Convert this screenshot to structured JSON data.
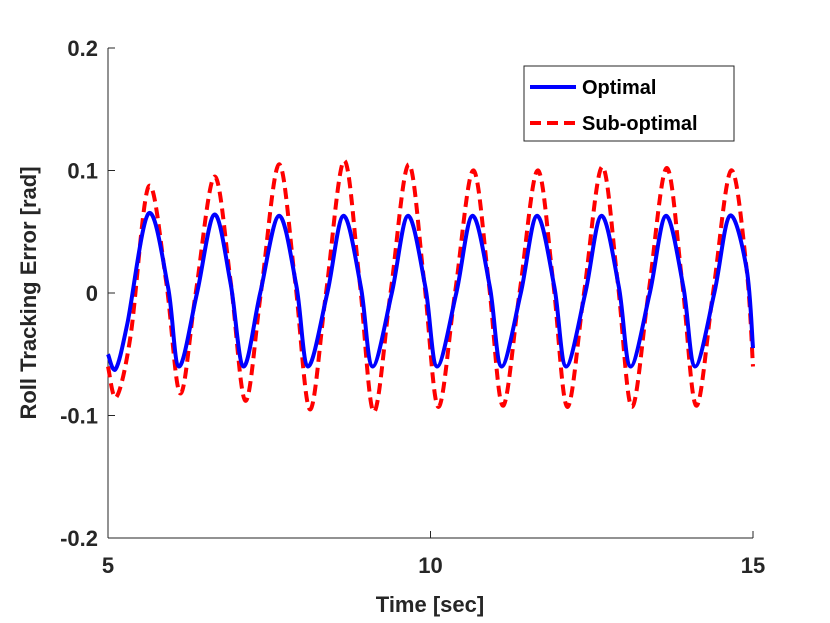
{
  "chart_data": {
    "type": "line",
    "title": "",
    "xlabel": "Time [sec]",
    "ylabel": "Roll Tracking Error [rad]",
    "xlim": [
      5,
      15
    ],
    "ylim": [
      -0.2,
      0.2
    ],
    "x_ticks": [
      5,
      10,
      15
    ],
    "x_tick_labels": [
      "5",
      "10",
      "15"
    ],
    "y_ticks": [
      -0.2,
      -0.1,
      0,
      0.1,
      0.2
    ],
    "y_tick_labels": [
      "-0.2",
      "-0.1",
      "0",
      "0.1",
      "0.2"
    ],
    "grid": false,
    "legend_position": "top-right",
    "series": [
      {
        "name": "Optimal",
        "color": "#0000ff",
        "style": "solid",
        "x": [
          5.0,
          5.12,
          5.3,
          5.63,
          5.93,
          6.1,
          6.38,
          6.65,
          6.9,
          7.1,
          7.36,
          7.65,
          7.92,
          8.1,
          8.4,
          8.65,
          8.92,
          9.1,
          9.4,
          9.65,
          9.92,
          10.1,
          10.4,
          10.65,
          10.92,
          11.1,
          11.4,
          11.65,
          11.92,
          12.1,
          12.4,
          12.65,
          12.92,
          13.1,
          13.4,
          13.65,
          13.92,
          14.1,
          14.4,
          14.64,
          14.9,
          15.0
        ],
        "y": [
          -0.05,
          -0.062,
          -0.025,
          0.065,
          0.005,
          -0.06,
          0.0,
          0.064,
          0.008,
          -0.06,
          0.0,
          0.063,
          0.006,
          -0.06,
          0.0,
          0.063,
          0.005,
          -0.06,
          0.0,
          0.063,
          0.005,
          -0.06,
          0.0,
          0.063,
          0.005,
          -0.06,
          0.0,
          0.063,
          0.005,
          -0.06,
          0.0,
          0.063,
          0.005,
          -0.06,
          0.0,
          0.063,
          0.005,
          -0.06,
          0.0,
          0.063,
          0.02,
          -0.045
        ]
      },
      {
        "name": "Sub-optimal",
        "color": "#ff0000",
        "style": "dashed",
        "x": [
          5.0,
          5.13,
          5.35,
          5.63,
          5.9,
          6.12,
          6.36,
          6.65,
          6.9,
          7.13,
          7.37,
          7.65,
          7.9,
          8.13,
          8.38,
          8.66,
          8.9,
          9.12,
          9.38,
          9.66,
          9.9,
          10.12,
          10.38,
          10.66,
          10.9,
          11.12,
          11.38,
          11.66,
          11.9,
          12.12,
          12.38,
          12.66,
          12.9,
          13.12,
          13.38,
          13.66,
          13.9,
          14.12,
          14.38,
          14.66,
          14.9,
          15.0
        ],
        "y": [
          -0.06,
          -0.085,
          -0.035,
          0.087,
          0.01,
          -0.082,
          0.0,
          0.095,
          0.01,
          -0.088,
          0.0,
          0.105,
          0.01,
          -0.095,
          0.0,
          0.108,
          0.01,
          -0.097,
          0.0,
          0.105,
          0.01,
          -0.093,
          0.0,
          0.1,
          0.01,
          -0.092,
          0.0,
          0.1,
          0.01,
          -0.093,
          0.0,
          0.103,
          0.01,
          -0.093,
          0.0,
          0.102,
          0.01,
          -0.092,
          0.0,
          0.1,
          0.02,
          -0.06
        ]
      }
    ]
  }
}
